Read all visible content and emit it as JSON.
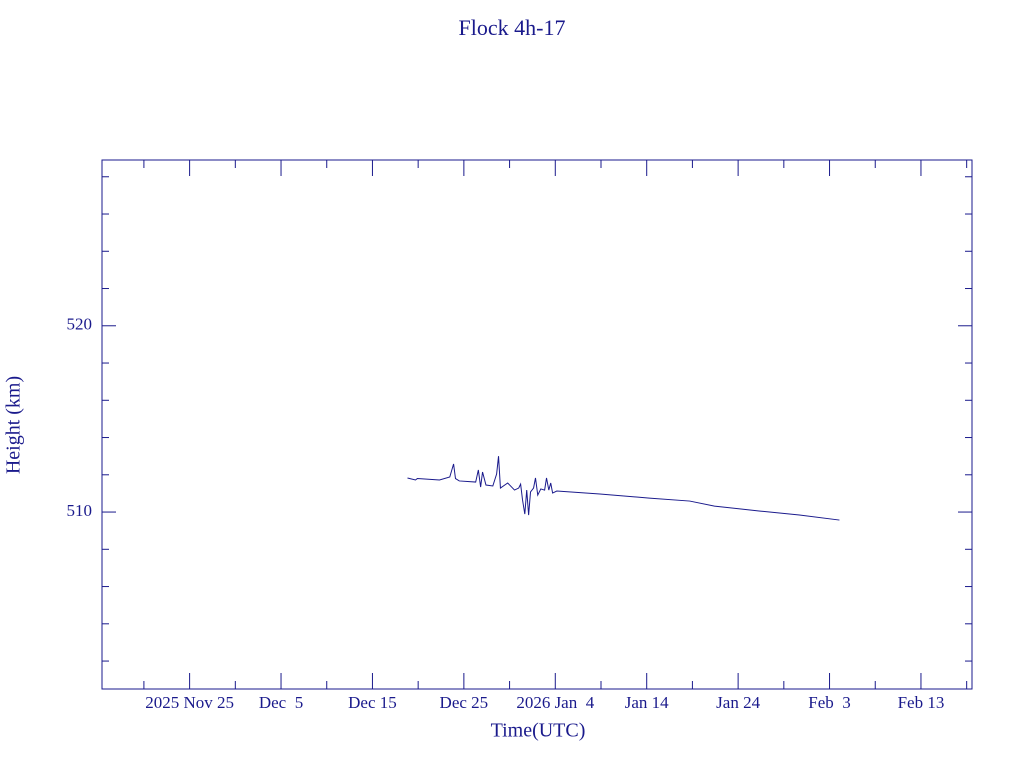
{
  "chart_data": {
    "type": "line",
    "title": "Flock 4h-17",
    "xlabel": "Time(UTC)",
    "ylabel": "Height (km)",
    "color": "#1a1a8c",
    "xlim": [
      "2025-11-15T10:00",
      "2026-02-18T14:00"
    ],
    "ylim": [
      500.5,
      528.9
    ],
    "xticks": [
      {
        "value": "2025-11-25T00:00",
        "label": "2025 Nov 25"
      },
      {
        "value": "2025-12-05T00:00",
        "label": "Dec  5"
      },
      {
        "value": "2025-12-15T00:00",
        "label": "Dec 15"
      },
      {
        "value": "2025-12-25T00:00",
        "label": "Dec 25"
      },
      {
        "value": "2026-01-04T00:00",
        "label": "2026 Jan  4"
      },
      {
        "value": "2026-01-14T00:00",
        "label": "Jan 14"
      },
      {
        "value": "2026-01-24T00:00",
        "label": "Jan 24"
      },
      {
        "value": "2026-02-03T00:00",
        "label": "Feb  3"
      },
      {
        "value": "2026-02-13T00:00",
        "label": "Feb 13"
      }
    ],
    "xminorticks": [
      "2025-11-20T00:00",
      "2025-11-30T00:00",
      "2025-12-10T00:00",
      "2025-12-20T00:00",
      "2025-12-30T00:00",
      "2026-01-09T00:00",
      "2026-01-19T00:00",
      "2026-01-29T00:00",
      "2026-02-08T00:00",
      "2026-02-18T00:00"
    ],
    "yticks": [
      510,
      520
    ],
    "yminorticks": [
      502,
      504,
      506,
      508,
      512,
      514,
      516,
      518,
      522,
      524,
      526,
      528
    ],
    "x": [
      "2025-12-18T20:00",
      "2025-12-19T17:00",
      "2025-12-19T22:00",
      "2025-12-22T08:00",
      "2025-12-23T11:00",
      "2025-12-23T21:00",
      "2025-12-24T02:00",
      "2025-12-24T12:00",
      "2025-12-26T07:00",
      "2025-12-26T14:00",
      "2025-12-26T20:00",
      "2025-12-27T01:00",
      "2025-12-27T10:00",
      "2025-12-28T04:00",
      "2025-12-28T14:00",
      "2025-12-28T19:00",
      "2025-12-29T00:00",
      "2025-12-29T19:00",
      "2025-12-30T13:00",
      "2025-12-31T00:00",
      "2025-12-31T05:00",
      "2025-12-31T10:00",
      "2025-12-31T16:00",
      "2025-12-31T21:00",
      "2026-01-01T02:00",
      "2026-01-01T07:00",
      "2026-01-01T15:00",
      "2026-01-01T20:00",
      "2026-01-02T02:00",
      "2026-01-02T10:00",
      "2026-01-02T20:00",
      "2026-01-03T01:00",
      "2026-01-03T07:00",
      "2026-01-03T12:00",
      "2026-01-03T17:00",
      "2026-01-04T04:00",
      "2026-01-08T21:00",
      "2026-01-14T07:00",
      "2026-01-18T17:00",
      "2026-01-21T10:00",
      "2026-01-26T10:00",
      "2026-01-30T17:00",
      "2026-02-04T02:00"
    ],
    "values": [
      511.83,
      511.72,
      511.8,
      511.72,
      511.88,
      512.58,
      511.8,
      511.67,
      511.61,
      512.26,
      511.34,
      512.15,
      511.45,
      511.4,
      512.04,
      513.0,
      511.29,
      511.56,
      511.18,
      511.29,
      511.5,
      510.65,
      509.89,
      511.18,
      509.84,
      511.08,
      511.29,
      511.83,
      510.91,
      511.24,
      511.18,
      511.83,
      511.18,
      511.56,
      511.02,
      511.13,
      510.97,
      510.75,
      510.59,
      510.32,
      510.05,
      509.84,
      509.57
    ]
  }
}
